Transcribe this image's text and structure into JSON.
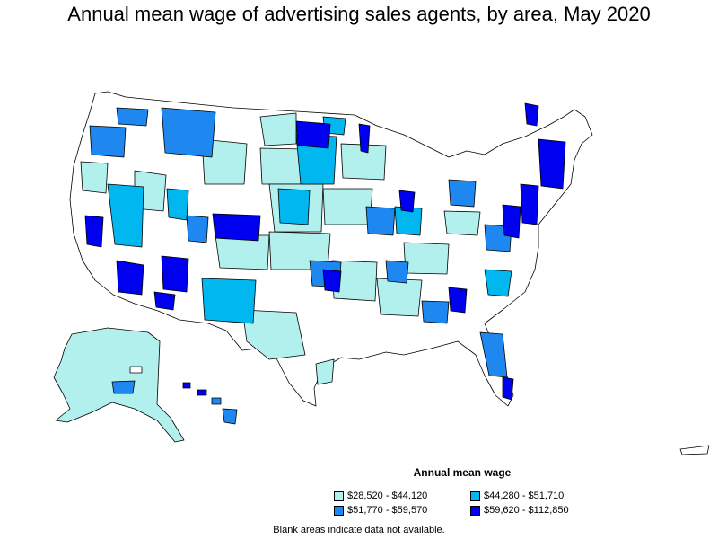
{
  "title": "Annual mean wage of advertising sales agents, by area, May 2020",
  "legend": {
    "title": "Annual mean wage",
    "bins": [
      {
        "label": "$28,520 - $44,120",
        "color": "#b2f0ee"
      },
      {
        "label": "$44,280 - $51,710",
        "color": "#00b7f0"
      },
      {
        "label": "$51,770 - $59,570",
        "color": "#1e88f0"
      },
      {
        "label": "$59,620 - $112,850",
        "color": "#0000f0"
      }
    ]
  },
  "note": "Blank areas indicate data not available."
}
